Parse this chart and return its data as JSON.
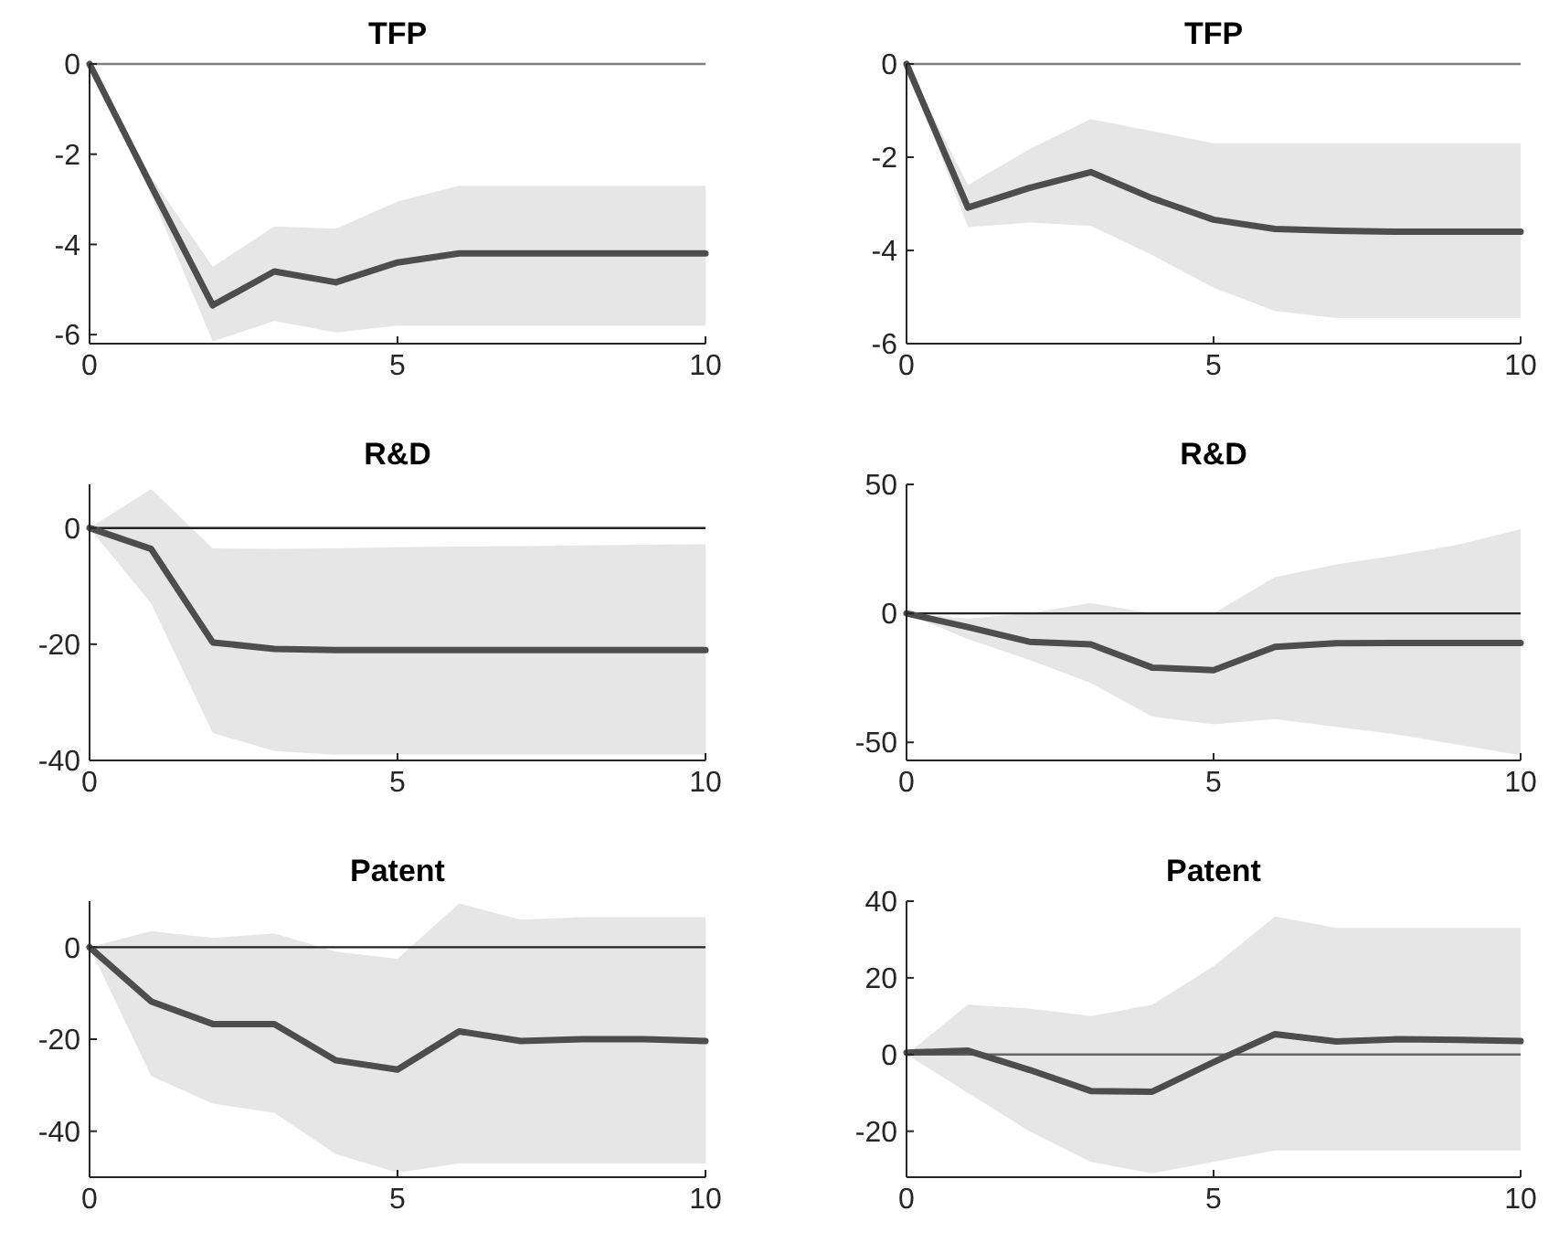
{
  "chart_data": [
    {
      "type": "line",
      "title": "TFP",
      "x": [
        0,
        1,
        2,
        3,
        4,
        5,
        6,
        7,
        8,
        9,
        10
      ],
      "xlim": [
        0,
        10
      ],
      "xticks": [
        0,
        5,
        10
      ],
      "ylim": [
        -6.2,
        0
      ],
      "yticks": [
        -6,
        -4,
        -2,
        0
      ],
      "grid": false,
      "line_style": "solid",
      "ref_lines": [
        {
          "axis": "y",
          "value": 0,
          "color": "#808080"
        }
      ],
      "series": [
        {
          "color": "#4d4d4d",
          "values": [
            0,
            -2.7,
            -5.35,
            -4.6,
            -4.84,
            -4.4,
            -4.2,
            -4.2,
            -4.2,
            -4.2,
            -4.2
          ],
          "lower": [
            0,
            -2.9,
            -6.15,
            -5.7,
            -5.95,
            -5.8,
            -5.8,
            -5.8,
            -5.8,
            -5.8,
            -5.8
          ],
          "upper": [
            0,
            -2.5,
            -4.5,
            -3.6,
            -3.65,
            -3.05,
            -2.7,
            -2.7,
            -2.7,
            -2.7,
            -2.7
          ]
        }
      ]
    },
    {
      "type": "line",
      "title": "TFP",
      "x": [
        0,
        1,
        2,
        3,
        4,
        5,
        6,
        7,
        8,
        9,
        10
      ],
      "xlim": [
        0,
        10
      ],
      "xticks": [
        0,
        5,
        10
      ],
      "ylim": [
        -6,
        0
      ],
      "yticks": [
        -6,
        -4,
        -2,
        0
      ],
      "grid": false,
      "line_style": "solid",
      "ref_lines": [
        {
          "axis": "y",
          "value": 0,
          "color": "#808080"
        }
      ],
      "series": [
        {
          "color": "#4d4d4d",
          "values": [
            0,
            -3.08,
            -2.66,
            -2.32,
            -2.88,
            -3.34,
            -3.54,
            -3.58,
            -3.6,
            -3.6,
            -3.6
          ],
          "lower": [
            0,
            -3.5,
            -3.4,
            -3.47,
            -4.1,
            -4.8,
            -5.3,
            -5.45,
            -5.45,
            -5.45,
            -5.45
          ],
          "upper": [
            0,
            -2.6,
            -1.83,
            -1.18,
            -1.44,
            -1.7,
            -1.7,
            -1.7,
            -1.7,
            -1.7,
            -1.7
          ]
        }
      ]
    },
    {
      "type": "line",
      "title": "R&D",
      "x": [
        0,
        1,
        2,
        3,
        4,
        5,
        6,
        7,
        8,
        9,
        10
      ],
      "xlim": [
        0,
        10
      ],
      "xticks": [
        0,
        5,
        10
      ],
      "ylim": [
        -40,
        7.5
      ],
      "yticks": [
        -40,
        -20,
        0
      ],
      "grid": false,
      "line_style": "solid",
      "ref_lines": [
        {
          "axis": "y",
          "value": 0,
          "color": "#222222"
        }
      ],
      "series": [
        {
          "color": "#4d4d4d",
          "values": [
            0,
            -3.6,
            -19.7,
            -20.8,
            -21,
            -21,
            -21,
            -21,
            -21,
            -21,
            -21
          ],
          "lower": [
            0,
            -13,
            -35.3,
            -38.4,
            -39,
            -39,
            -39,
            -39,
            -39,
            -39,
            -39
          ],
          "upper": [
            0,
            6.7,
            -3.5,
            -3.6,
            -3.5,
            -3.3,
            -3.2,
            -3.1,
            -3,
            -2.9,
            -2.8
          ]
        }
      ]
    },
    {
      "type": "line",
      "title": "R&D",
      "x": [
        0,
        1,
        2,
        3,
        4,
        5,
        6,
        7,
        8,
        9,
        10
      ],
      "xlim": [
        0,
        10
      ],
      "xticks": [
        0,
        5,
        10
      ],
      "ylim": [
        -57,
        50
      ],
      "yticks": [
        -50,
        0,
        50
      ],
      "grid": false,
      "line_style": "solid",
      "ref_lines": [
        {
          "axis": "y",
          "value": 0,
          "color": "#222222"
        }
      ],
      "series": [
        {
          "color": "#4d4d4d",
          "values": [
            0,
            -5.3,
            -11,
            -12,
            -21,
            -22,
            -13,
            -11.6,
            -11.5,
            -11.5,
            -11.5
          ],
          "lower": [
            0,
            -10,
            -18,
            -27,
            -40,
            -43,
            -41,
            -44,
            -47,
            -51,
            -55
          ],
          "upper": [
            0,
            -2,
            0,
            4,
            0,
            0,
            14,
            19,
            22.6,
            26.7,
            32.6
          ]
        }
      ]
    },
    {
      "type": "line",
      "title": "Patent",
      "x": [
        0,
        1,
        2,
        3,
        4,
        5,
        6,
        7,
        8,
        9,
        10
      ],
      "xlim": [
        0,
        10
      ],
      "xticks": [
        0,
        5,
        10
      ],
      "ylim": [
        -50,
        10
      ],
      "yticks": [
        -40,
        -20,
        0
      ],
      "grid": false,
      "line_style": "solid",
      "ref_lines": [
        {
          "axis": "y",
          "value": 0,
          "color": "#222222"
        }
      ],
      "series": [
        {
          "color": "#4d4d4d",
          "values": [
            0,
            -11.8,
            -16.7,
            -16.7,
            -24.6,
            -26.6,
            -18.3,
            -20.4,
            -20,
            -20,
            -20.4
          ],
          "lower": [
            0,
            -28,
            -34,
            -36,
            -45,
            -49,
            -47,
            -47,
            -47,
            -47,
            -47
          ],
          "upper": [
            0,
            3.5,
            2,
            3,
            -1,
            -2.5,
            9.5,
            6,
            6.5,
            6.5,
            6.5
          ]
        }
      ]
    },
    {
      "type": "line",
      "title": "Patent",
      "x": [
        0,
        1,
        2,
        3,
        4,
        5,
        6,
        7,
        8,
        9,
        10
      ],
      "xlim": [
        0,
        10
      ],
      "xticks": [
        0,
        5,
        10
      ],
      "ylim": [
        -32,
        40
      ],
      "yticks": [
        -20,
        0,
        20,
        40
      ],
      "grid": false,
      "line_style": "solid",
      "ref_lines": [
        {
          "axis": "y",
          "value": 0,
          "color": "#666666"
        }
      ],
      "series": [
        {
          "color": "#4d4d4d",
          "values": [
            0.5,
            1,
            -4,
            -9.5,
            -9.7,
            -2,
            5.3,
            3.4,
            4,
            3.8,
            3.5
          ],
          "lower": [
            0,
            -10,
            -20,
            -28,
            -31,
            -28,
            -25,
            -25,
            -25,
            -25,
            -25
          ],
          "upper": [
            0,
            13,
            12,
            10,
            13,
            23,
            36,
            33,
            33,
            33,
            33
          ]
        }
      ]
    }
  ]
}
